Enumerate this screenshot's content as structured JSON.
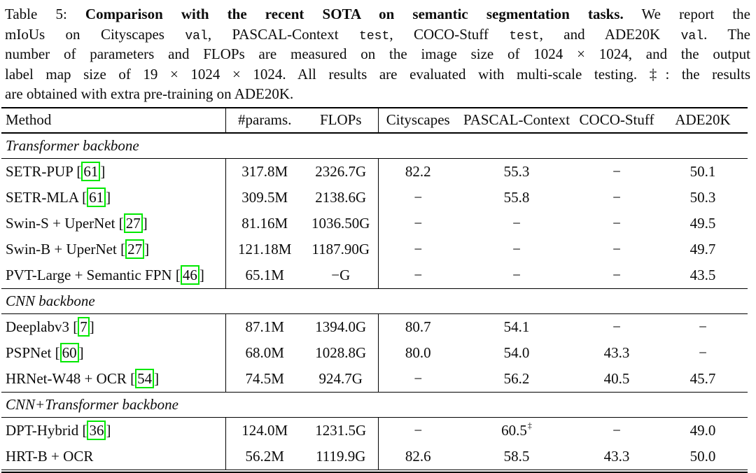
{
  "caption": {
    "lines": [
      [
        {
          "t": "Table 5: ",
          "s": "plain"
        },
        {
          "t": "Comparison with the recent SOTA on semantic segmentation tasks.",
          "s": "bold"
        },
        {
          "t": " We report the",
          "s": "plain"
        }
      ],
      [
        {
          "t": "mIoUs on Cityscapes ",
          "s": "plain"
        },
        {
          "t": "val",
          "s": "mono"
        },
        {
          "t": ", PASCAL-Context ",
          "s": "plain"
        },
        {
          "t": "test",
          "s": "mono"
        },
        {
          "t": ", COCO-Stuff ",
          "s": "plain"
        },
        {
          "t": "test",
          "s": "mono"
        },
        {
          "t": ", and ADE20K ",
          "s": "plain"
        },
        {
          "t": "val",
          "s": "mono"
        },
        {
          "t": ". The",
          "s": "plain"
        }
      ],
      [
        {
          "t": "number of parameters and FLOPs are measured on the image size of 1024 × 1024, and the output",
          "s": "plain"
        }
      ],
      [
        {
          "t": "label map size of 19 × 1024 × 1024. All results are evaluated with multi-scale testing. ‡: the results",
          "s": "plain"
        }
      ],
      [
        {
          "t": "are obtained with extra pre-training on ADE20K.",
          "s": "plain"
        }
      ]
    ]
  },
  "table": {
    "cite_box_color": "#00e800",
    "columns": [
      {
        "key": "method",
        "label": "Method"
      },
      {
        "key": "params",
        "label": "#params."
      },
      {
        "key": "flops",
        "label": "FLOPs"
      },
      {
        "key": "cityscapes",
        "label": "Cityscapes"
      },
      {
        "key": "pascal",
        "label": "PASCAL-Context"
      },
      {
        "key": "coco",
        "label": "COCO-Stuff"
      },
      {
        "key": "ade",
        "label": "ADE20K"
      }
    ],
    "sections": [
      {
        "label": "Transformer backbone",
        "rows": [
          {
            "method": "SETR-PUP",
            "cite": "61",
            "params": "317.8M",
            "flops": "2326.7G",
            "cityscapes": "82.2",
            "pascal": "55.3",
            "coco": "−",
            "ade": "50.1"
          },
          {
            "method": "SETR-MLA",
            "cite": "61",
            "params": "309.5M",
            "flops": "2138.6G",
            "cityscapes": "−",
            "pascal": "55.8",
            "coco": "−",
            "ade": "50.3"
          },
          {
            "method": "Swin-S + UperNet",
            "cite": "27",
            "params": "81.16M",
            "flops": "1036.50G",
            "cityscapes": "−",
            "pascal": "−",
            "coco": "−",
            "ade": "49.5"
          },
          {
            "method": "Swin-B + UperNet",
            "cite": "27",
            "params": "121.18M",
            "flops": "1187.90G",
            "cityscapes": "−",
            "pascal": "−",
            "coco": "−",
            "ade": "49.7"
          },
          {
            "method": "PVT-Large + Semantic FPN",
            "cite": "46",
            "params": "65.1M",
            "flops": "−G",
            "cityscapes": "−",
            "pascal": "−",
            "coco": "−",
            "ade": "43.5"
          }
        ]
      },
      {
        "label": "CNN backbone",
        "rows": [
          {
            "method": "Deeplabv3",
            "cite": "7",
            "params": "87.1M",
            "flops": "1394.0G",
            "cityscapes": "80.7",
            "pascal": "54.1",
            "coco": "−",
            "ade": "−"
          },
          {
            "method": "PSPNet",
            "cite": "60",
            "params": "68.0M",
            "flops": "1028.8G",
            "cityscapes": "80.0",
            "pascal": "54.0",
            "coco": "43.3",
            "ade": "−"
          },
          {
            "method": "HRNet-W48 + OCR",
            "cite": "54",
            "params": "74.5M",
            "flops": "924.7G",
            "cityscapes": "−",
            "pascal": "56.2",
            "coco": "40.5",
            "ade": "45.7"
          }
        ]
      },
      {
        "label": "CNN+Transformer backbone",
        "rows": [
          {
            "method": "DPT-Hybrid",
            "cite": "36",
            "params": "124.0M",
            "flops": "1231.5G",
            "cityscapes": "−",
            "pascal": "60.5",
            "pascal_sup": "‡",
            "coco": "−",
            "ade": "49.0"
          },
          {
            "method": "HRT-B + OCR",
            "cite": null,
            "params": "56.2M",
            "flops": "1119.9G",
            "cityscapes": "82.6",
            "pascal": "58.5",
            "coco": "43.3",
            "ade": "50.0"
          }
        ]
      }
    ]
  }
}
